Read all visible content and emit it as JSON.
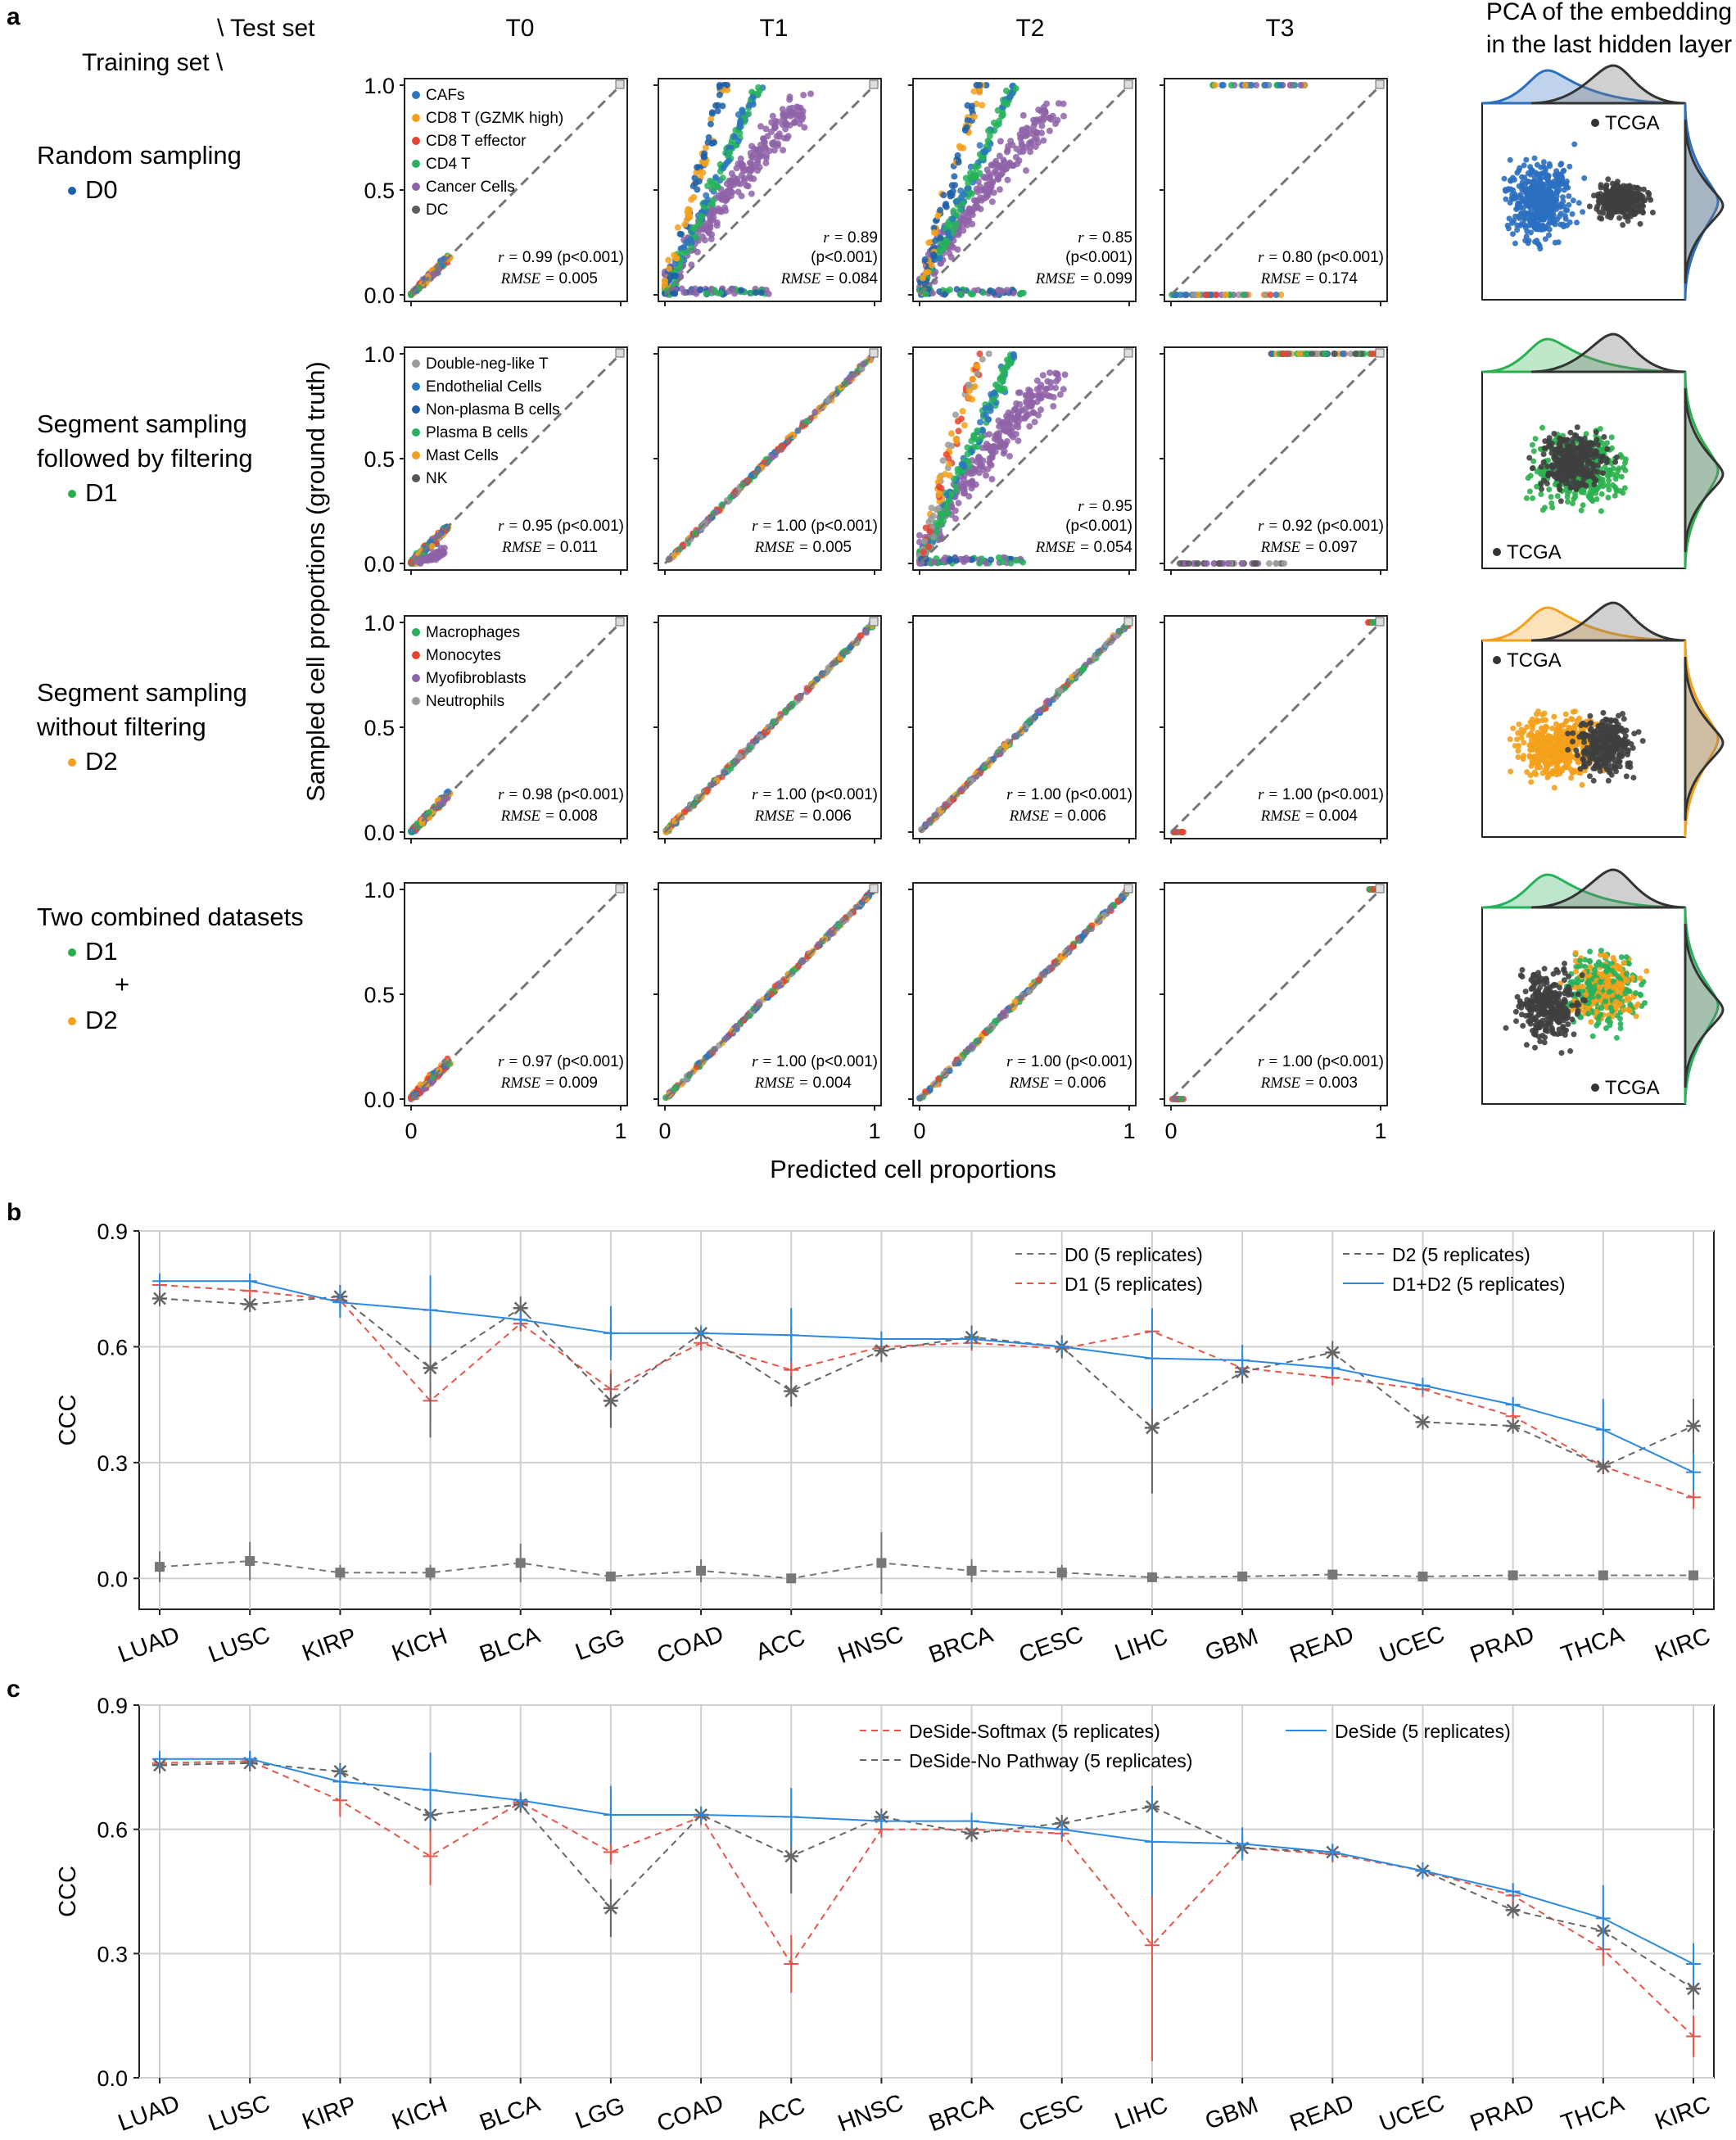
{
  "panel_a": {
    "letter": "a",
    "corner_test": "\\  Test set",
    "corner_train": "Training set \\",
    "test_sets": [
      "T0",
      "T1",
      "T2",
      "T3"
    ],
    "pca_title": [
      "PCA of the embedding",
      "in the last hidden layer"
    ],
    "ylabel": "Sampled cell proportions (ground truth)",
    "xlabel": "Predicted cell proportions",
    "x_ticks": [
      "0",
      "1"
    ],
    "y_ticks": [
      "0.0",
      "0.5",
      "1.0"
    ],
    "rows": [
      {
        "label": [
          "Random sampling"
        ],
        "datasets": [
          {
            "name": "D0",
            "color": "#1f5fa8"
          }
        ],
        "pca_label": "TCGA",
        "pca_label_pos": "top-right",
        "pca_color": "#2b6fc0"
      },
      {
        "label": [
          "Segment sampling",
          "followed by filtering"
        ],
        "datasets": [
          {
            "name": "D1",
            "color": "#2ab04c"
          }
        ],
        "pca_label": "TCGA",
        "pca_label_pos": "bottom-left",
        "pca_color": "#2ab04c"
      },
      {
        "label": [
          "Segment sampling",
          "without filtering"
        ],
        "datasets": [
          {
            "name": "D2",
            "color": "#f4a01b"
          }
        ],
        "pca_label": "TCGA",
        "pca_label_pos": "top-left",
        "pca_color": "#f4a01b"
      },
      {
        "label": [
          "Two combined datasets"
        ],
        "datasets": [
          {
            "name": "D1",
            "color": "#2ab04c"
          },
          {
            "name": "D2",
            "color": "#f4a01b"
          }
        ],
        "plus": "+",
        "pca_label": "TCGA",
        "pca_label_pos": "bottom-right",
        "pca_color": "mix"
      }
    ],
    "legends": [
      [
        [
          "CAFs",
          "#2b76c0"
        ],
        [
          "CD8 T (GZMK high)",
          "#f4a01b"
        ],
        [
          "CD8 T effector",
          "#e8432e"
        ],
        [
          "CD4 T",
          "#26b15a"
        ],
        [
          "Cancer Cells",
          "#8f63a8"
        ],
        [
          "DC",
          "#5c5c5c"
        ]
      ],
      [
        [
          "Double-neg-like T",
          "#9a9a9a"
        ],
        [
          "Endothelial Cells",
          "#2b76c0"
        ],
        [
          "Non-plasma B cells",
          "#1f5fa8"
        ],
        [
          "Plasma B cells",
          "#26b15a"
        ],
        [
          "Mast Cells",
          "#f4a01b"
        ],
        [
          "NK",
          "#555555"
        ]
      ],
      [
        [
          "Macrophages",
          "#26b15a"
        ],
        [
          "Monocytes",
          "#e8432e"
        ],
        [
          "Myofibroblasts",
          "#8f63a8"
        ],
        [
          "Neutrophils",
          "#9a9a9a"
        ]
      ]
    ],
    "stats": [
      [
        {
          "r": "0.99",
          "p": "(p<0.001)",
          "rmse": "0.005",
          "wrap": false
        },
        {
          "r": "0.89",
          "p": "(p<0.001)",
          "rmse": "0.084",
          "wrap": true
        },
        {
          "r": "0.85",
          "p": "(p<0.001)",
          "rmse": "0.099",
          "wrap": true
        },
        {
          "r": "0.80",
          "p": "(p<0.001)",
          "rmse": "0.174",
          "wrap": false
        }
      ],
      [
        {
          "r": "0.95",
          "p": "(p<0.001)",
          "rmse": "0.011",
          "wrap": false
        },
        {
          "r": "1.00",
          "p": "(p<0.001)",
          "rmse": "0.005",
          "wrap": false
        },
        {
          "r": "0.95",
          "p": "(p<0.001)",
          "rmse": "0.054",
          "wrap": true
        },
        {
          "r": "0.92",
          "p": "(p<0.001)",
          "rmse": "0.097",
          "wrap": false
        }
      ],
      [
        {
          "r": "0.98",
          "p": "(p<0.001)",
          "rmse": "0.008",
          "wrap": false
        },
        {
          "r": "1.00",
          "p": "(p<0.001)",
          "rmse": "0.006",
          "wrap": false
        },
        {
          "r": "1.00",
          "p": "(p<0.001)",
          "rmse": "0.006",
          "wrap": false
        },
        {
          "r": "1.00",
          "p": "(p<0.001)",
          "rmse": "0.004",
          "wrap": false
        }
      ],
      [
        {
          "r": "0.97",
          "p": "(p<0.001)",
          "rmse": "0.009",
          "wrap": false
        },
        {
          "r": "1.00",
          "p": "(p<0.001)",
          "rmse": "0.004",
          "wrap": false
        },
        {
          "r": "1.00",
          "p": "(p<0.001)",
          "rmse": "0.006",
          "wrap": false
        },
        {
          "r": "1.00",
          "p": "(p<0.001)",
          "rmse": "0.003",
          "wrap": false
        }
      ]
    ],
    "r_symbol": "r",
    "rmse_symbol": "RMSE"
  },
  "chart_data": [
    {
      "panel": "b",
      "type": "line",
      "ylabel": "CCC",
      "ylim": [
        -0.08,
        0.9
      ],
      "yticks": [
        "0.0",
        "0.3",
        "0.6",
        "0.9"
      ],
      "grid": true,
      "legend_position": "top-right",
      "categories": [
        "LUAD",
        "LUSC",
        "KIRP",
        "KICH",
        "BLCA",
        "LGG",
        "COAD",
        "ACC",
        "HNSC",
        "BRCA",
        "CESC",
        "LIHC",
        "GBM",
        "READ",
        "UCEC",
        "PRAD",
        "THCA",
        "KIRC"
      ],
      "series": [
        {
          "name": "D0 (5 replicates)",
          "color": "#777777",
          "dash": true,
          "marker": "square",
          "values": [
            0.03,
            0.045,
            0.015,
            0.015,
            0.04,
            0.005,
            0.02,
            0.0,
            0.04,
            0.02,
            0.015,
            0.003,
            0.005,
            0.01,
            0.005,
            0.008,
            0.008,
            0.008
          ],
          "err": [
            0.04,
            0.05,
            0.02,
            0.02,
            0.05,
            0.01,
            0.03,
            0.01,
            0.08,
            0.03,
            0.02,
            0.01,
            0.01,
            0.01,
            0.01,
            0.01,
            0.01,
            0.01
          ]
        },
        {
          "name": "D1 (5 replicates)",
          "color": "#e8554a",
          "dash": true,
          "marker": "plus",
          "values": [
            0.76,
            0.745,
            0.72,
            0.46,
            0.66,
            0.49,
            0.61,
            0.54,
            0.6,
            0.61,
            0.595,
            0.64,
            0.545,
            0.52,
            0.49,
            0.42,
            0.29,
            0.21
          ],
          "err": [
            0.02,
            0.02,
            0.02,
            0.05,
            0.02,
            0.05,
            0.02,
            0.03,
            0.02,
            0.02,
            0.02,
            0.05,
            0.02,
            0.02,
            0.02,
            0.02,
            0.02,
            0.03
          ]
        },
        {
          "name": "D2 (5 replicates)",
          "color": "#666666",
          "dash": true,
          "marker": "x",
          "values": [
            0.725,
            0.71,
            0.73,
            0.545,
            0.7,
            0.46,
            0.635,
            0.485,
            0.59,
            0.625,
            0.6,
            0.39,
            0.535,
            0.585,
            0.405,
            0.395,
            0.29,
            0.395
          ],
          "err": [
            0.02,
            0.02,
            0.03,
            0.18,
            0.03,
            0.07,
            0.02,
            0.04,
            0.03,
            0.03,
            0.03,
            0.17,
            0.03,
            0.03,
            0.02,
            0.02,
            0.02,
            0.07
          ]
        },
        {
          "name": "D1+D2 (5 replicates)",
          "color": "#2b8ae0",
          "dash": false,
          "marker": "plus",
          "values": [
            0.77,
            0.77,
            0.715,
            0.695,
            0.67,
            0.635,
            0.635,
            0.63,
            0.62,
            0.62,
            0.6,
            0.57,
            0.565,
            0.545,
            0.5,
            0.45,
            0.385,
            0.275
          ],
          "err": [
            0.02,
            0.02,
            0.04,
            0.09,
            0.02,
            0.07,
            0.02,
            0.07,
            0.02,
            0.02,
            0.02,
            0.13,
            0.04,
            0.02,
            0.02,
            0.02,
            0.08,
            0.05
          ]
        }
      ]
    },
    {
      "panel": "c",
      "type": "line",
      "ylabel": "CCC",
      "ylim": [
        0.0,
        0.9
      ],
      "yticks": [
        "0.0",
        "0.3",
        "0.6",
        "0.9"
      ],
      "grid": true,
      "legend_position": "top-right",
      "categories": [
        "LUAD",
        "LUSC",
        "KIRP",
        "KICH",
        "BLCA",
        "LGG",
        "COAD",
        "ACC",
        "HNSC",
        "BRCA",
        "CESC",
        "LIHC",
        "GBM",
        "READ",
        "UCEC",
        "PRAD",
        "THCA",
        "KIRC"
      ],
      "series": [
        {
          "name": "DeSide-Softmax (5 replicates)",
          "color": "#e8554a",
          "dash": true,
          "marker": "plus",
          "values": [
            0.76,
            0.765,
            0.67,
            0.535,
            0.665,
            0.545,
            0.63,
            0.275,
            0.6,
            0.6,
            0.59,
            0.32,
            0.555,
            0.54,
            0.5,
            0.44,
            0.31,
            0.1
          ],
          "err": [
            0.02,
            0.02,
            0.04,
            0.07,
            0.02,
            0.03,
            0.02,
            0.07,
            0.02,
            0.02,
            0.02,
            0.28,
            0.02,
            0.02,
            0.02,
            0.03,
            0.04,
            0.05
          ]
        },
        {
          "name": "DeSide-No Pathway (5 replicates)",
          "color": "#666666",
          "dash": true,
          "marker": "x",
          "values": [
            0.755,
            0.76,
            0.74,
            0.635,
            0.66,
            0.41,
            0.635,
            0.535,
            0.63,
            0.59,
            0.615,
            0.655,
            0.555,
            0.545,
            0.5,
            0.405,
            0.355,
            0.215
          ],
          "err": [
            0.02,
            0.02,
            0.02,
            0.04,
            0.02,
            0.07,
            0.02,
            0.09,
            0.02,
            0.02,
            0.02,
            0.05,
            0.02,
            0.02,
            0.02,
            0.02,
            0.02,
            0.05
          ]
        },
        {
          "name": "DeSide (5 replicates)",
          "color": "#2b8ae0",
          "dash": false,
          "marker": "plus",
          "values": [
            0.77,
            0.77,
            0.715,
            0.695,
            0.67,
            0.635,
            0.635,
            0.63,
            0.62,
            0.62,
            0.6,
            0.57,
            0.565,
            0.545,
            0.5,
            0.45,
            0.385,
            0.275
          ],
          "err": [
            0.02,
            0.02,
            0.04,
            0.09,
            0.02,
            0.07,
            0.02,
            0.07,
            0.02,
            0.02,
            0.02,
            0.13,
            0.04,
            0.02,
            0.02,
            0.02,
            0.08,
            0.05
          ]
        }
      ]
    }
  ],
  "panel_b": {
    "letter": "b"
  },
  "panel_c": {
    "letter": "c"
  }
}
